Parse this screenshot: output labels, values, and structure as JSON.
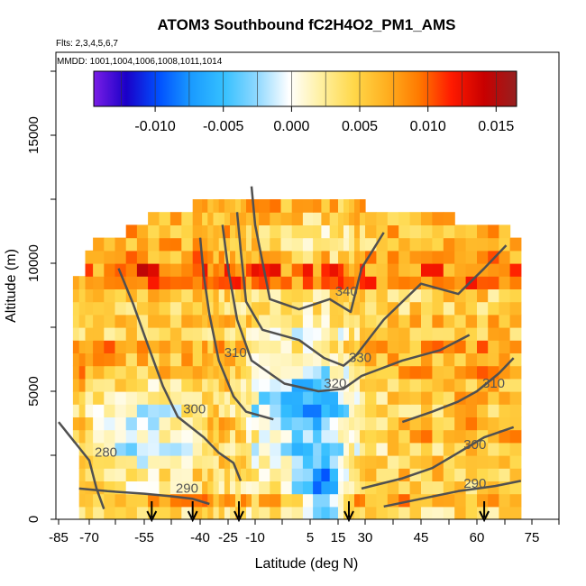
{
  "chart_data": {
    "type": "heatmap",
    "title": "ATOM3 Southbound fC2H4O2_PM1_AMS",
    "flights_note": "Flts: 2,3,4,5,6,7",
    "dates_note": "MMDD: 1001,1004,1006,1008,1011,1014",
    "xlabel": "Latitude (deg N)",
    "ylabel": "Altitude (m)",
    "xlim": [
      -85,
      85
    ],
    "ylim": [
      0,
      18000
    ],
    "x_ticks": [
      -85,
      -70,
      -55,
      -40,
      -25,
      -10,
      5,
      15,
      30,
      45,
      60,
      75
    ],
    "y_ticks": [
      0,
      5000,
      10000,
      15000
    ],
    "colorbar": {
      "range": [
        -0.0145,
        0.0165
      ],
      "ticks": [
        "-0.010",
        "-0.005",
        "0.000",
        "0.005",
        "0.010",
        "0.015"
      ],
      "tick_values": [
        -0.01,
        -0.005,
        0.0,
        0.005,
        0.01,
        0.015
      ],
      "colors": [
        "#7a1ee6",
        "#1a00c8",
        "#0050ff",
        "#1a9bff",
        "#35c0ff",
        "#8ed8ff",
        "#ffffff",
        "#fff0a0",
        "#ffd84a",
        "#ffb020",
        "#ff7a00",
        "#ff1a00",
        "#c80000",
        "#962020"
      ]
    },
    "theta_contours": [
      {
        "label": "280",
        "points": [
          [
            -85,
            3800
          ],
          [
            -80,
            3300
          ],
          [
            -75,
            2800
          ],
          [
            -70,
            2300
          ],
          [
            -68,
            1200
          ],
          [
            -66,
            400
          ]
        ]
      },
      {
        "label": "290",
        "points": [
          [
            -75,
            1200
          ],
          [
            -65,
            1100
          ],
          [
            -55,
            1000
          ],
          [
            -48,
            900
          ],
          [
            -42,
            800
          ],
          [
            -35,
            600
          ]
        ]
      },
      {
        "label": "300",
        "points": [
          [
            -62,
            9800
          ],
          [
            -58,
            8400
          ],
          [
            -54,
            6800
          ],
          [
            -50,
            5200
          ],
          [
            -46,
            4000
          ],
          [
            -38,
            3200
          ],
          [
            -30,
            2600
          ],
          [
            -22,
            2200
          ],
          [
            -18,
            1500
          ]
        ]
      },
      {
        "label": "310",
        "points": [
          [
            -40,
            11000
          ],
          [
            -38,
            9500
          ],
          [
            -35,
            8000
          ],
          [
            -30,
            6200
          ],
          [
            -22,
            4800
          ],
          [
            -15,
            4200
          ],
          [
            -5,
            3900
          ]
        ]
      },
      {
        "label": "320",
        "points": [
          [
            -28,
            11500
          ],
          [
            -25,
            9800
          ],
          [
            -20,
            7800
          ],
          [
            -12,
            6200
          ],
          [
            -2,
            5300
          ],
          [
            8,
            5000
          ],
          [
            18,
            5100
          ],
          [
            28,
            5600
          ],
          [
            40,
            6200
          ],
          [
            50,
            6600
          ],
          [
            58,
            7200
          ]
        ]
      },
      {
        "label": "330",
        "points": [
          [
            -20,
            12000
          ],
          [
            -18,
            10500
          ],
          [
            -15,
            8500
          ],
          [
            -8,
            7400
          ],
          [
            2,
            7000
          ],
          [
            10,
            6300
          ],
          [
            18,
            6000
          ],
          [
            25,
            6400
          ],
          [
            35,
            7800
          ],
          [
            45,
            9200
          ],
          [
            55,
            8800
          ],
          [
            62,
            9800
          ],
          [
            68,
            10700
          ]
        ]
      },
      {
        "label": "340",
        "points": [
          [
            -12,
            13000
          ],
          [
            -10,
            11500
          ],
          [
            -6,
            8600
          ],
          [
            2,
            8200
          ],
          [
            12,
            8600
          ],
          [
            22,
            8100
          ],
          [
            28,
            9800
          ],
          [
            35,
            11200
          ]
        ]
      },
      {
        "label": "310",
        "points": [
          [
            40,
            3800
          ],
          [
            48,
            4200
          ],
          [
            55,
            4600
          ],
          [
            60,
            5000
          ],
          [
            66,
            5700
          ],
          [
            70,
            6300
          ]
        ]
      },
      {
        "label": "300",
        "points": [
          [
            28,
            1200
          ],
          [
            40,
            1600
          ],
          [
            48,
            2000
          ],
          [
            55,
            2600
          ],
          [
            62,
            3200
          ],
          [
            70,
            3600
          ]
        ]
      },
      {
        "label": "290",
        "points": [
          [
            35,
            500
          ],
          [
            45,
            800
          ],
          [
            55,
            1100
          ],
          [
            65,
            1300
          ],
          [
            72,
            1500
          ]
        ]
      }
    ],
    "sounding_latitudes": [
      -53,
      -42,
      -19,
      21,
      62
    ]
  }
}
